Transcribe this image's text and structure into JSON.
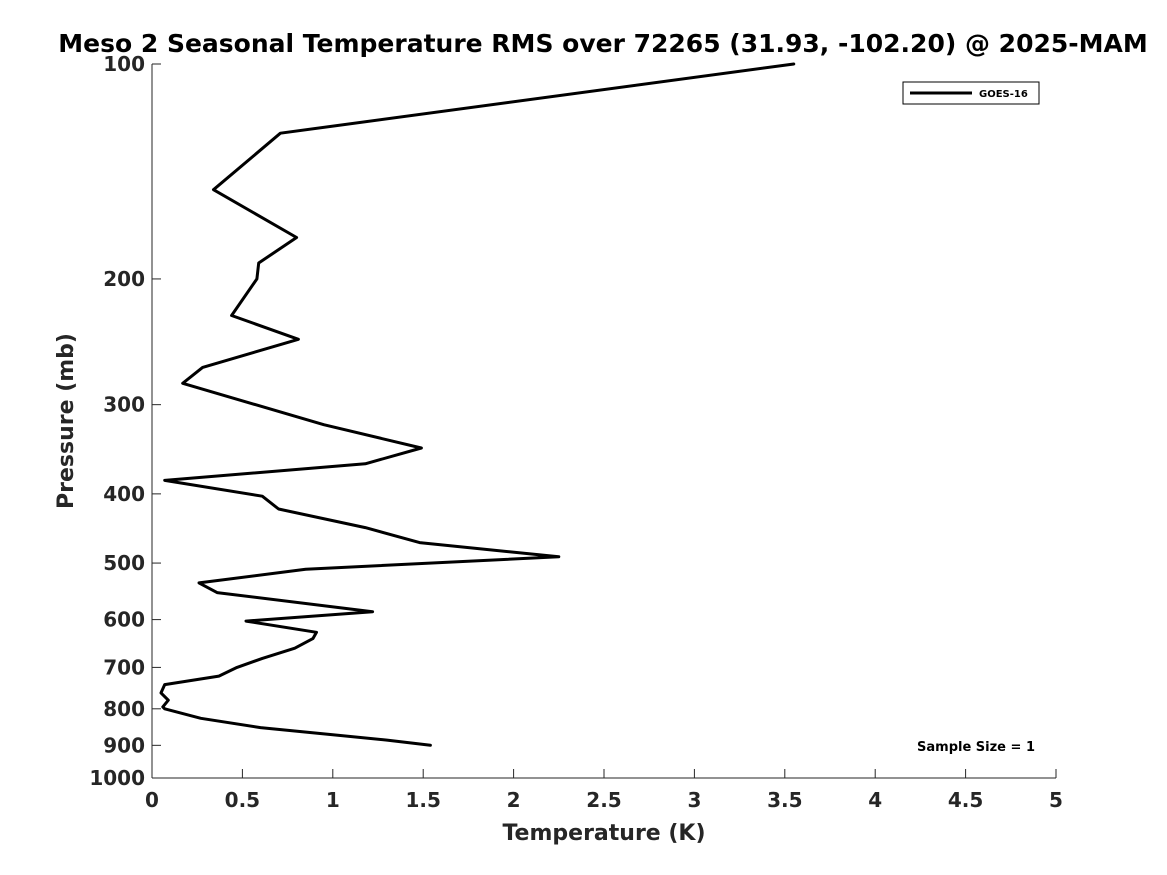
{
  "chart_data": {
    "type": "line",
    "title": "Meso 2 Seasonal Temperature RMS over 72265 (31.93, -102.20) @ 2025-MAM",
    "xlabel": "Temperature (K)",
    "ylabel": "Pressure (mb)",
    "xlim": [
      0,
      5
    ],
    "ylim": [
      1000,
      100
    ],
    "y_scale": "log",
    "y_reversed": true,
    "x_ticks": [
      0,
      0.5,
      1,
      1.5,
      2,
      2.5,
      3,
      3.5,
      4,
      4.5,
      5
    ],
    "x_tick_labels": [
      "0",
      "0.5",
      "1",
      "1.5",
      "2",
      "2.5",
      "3",
      "3.5",
      "4",
      "4.5",
      "5"
    ],
    "y_ticks": [
      100,
      200,
      300,
      400,
      500,
      600,
      700,
      800,
      900,
      1000
    ],
    "y_tick_labels": [
      "100",
      "200",
      "300",
      "400",
      "500",
      "600",
      "700",
      "800",
      "900",
      "1000"
    ],
    "grid": false,
    "legend_position": "top-right",
    "series": [
      {
        "name": "GOES-16",
        "color": "#000000",
        "points": [
          [
            3.55,
            100
          ],
          [
            0.71,
            125
          ],
          [
            0.34,
            150
          ],
          [
            0.8,
            175
          ],
          [
            0.59,
            190
          ],
          [
            0.58,
            200
          ],
          [
            0.44,
            225
          ],
          [
            0.81,
            243
          ],
          [
            0.28,
            266
          ],
          [
            0.17,
            280
          ],
          [
            0.95,
            320
          ],
          [
            1.49,
            345
          ],
          [
            1.18,
            363
          ],
          [
            0.07,
            383
          ],
          [
            0.61,
            403
          ],
          [
            0.7,
            420
          ],
          [
            1.18,
            446
          ],
          [
            1.48,
            468
          ],
          [
            2.25,
            490
          ],
          [
            0.85,
            510
          ],
          [
            0.26,
            533
          ],
          [
            0.36,
            550
          ],
          [
            1.22,
            585
          ],
          [
            0.52,
            603
          ],
          [
            0.91,
            625
          ],
          [
            0.89,
            638
          ],
          [
            0.79,
            658
          ],
          [
            0.61,
            680
          ],
          [
            0.47,
            700
          ],
          [
            0.37,
            720
          ],
          [
            0.07,
            740
          ],
          [
            0.05,
            760
          ],
          [
            0.09,
            778
          ],
          [
            0.06,
            795
          ],
          [
            0.07,
            800
          ],
          [
            0.27,
            825
          ],
          [
            0.6,
            850
          ],
          [
            1.0,
            870
          ],
          [
            1.3,
            885
          ],
          [
            1.54,
            900
          ]
        ]
      }
    ],
    "annotation": "Sample Size = 1"
  }
}
